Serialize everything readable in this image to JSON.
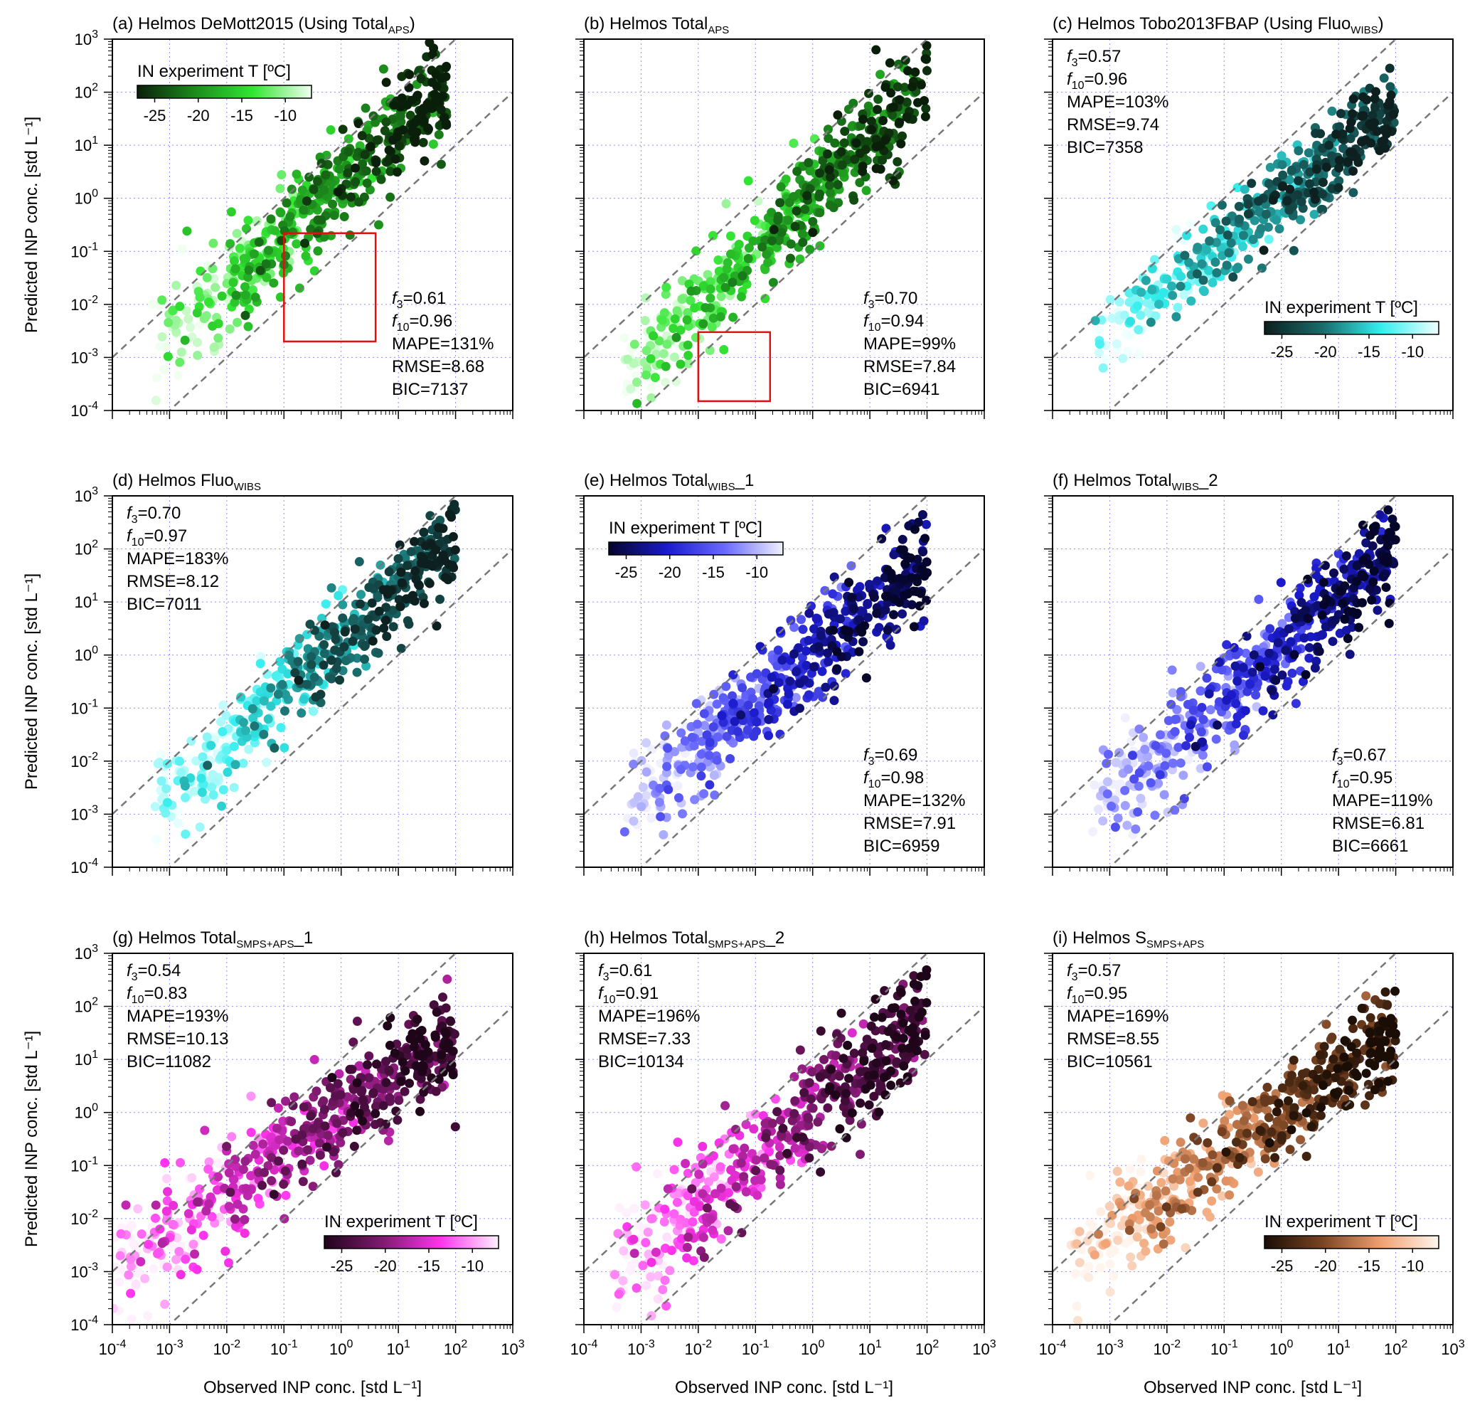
{
  "x_axis_label": "Observed INP conc. [std L⁻¹]",
  "y_axis_label": "Predicted INP conc. [std L⁻¹]",
  "colorbar_title": "IN experiment T [ºC]",
  "colorbar_ticks": [
    "-25",
    "-20",
    "-15",
    "-10"
  ],
  "axis_tick_labels": [
    "10⁻⁴",
    "10⁻³",
    "10⁻²",
    "10⁻¹",
    "10⁰",
    "10¹",
    "10²",
    "10³"
  ],
  "chart_data": [
    {
      "id": "a",
      "type": "scatter",
      "title": "(a) Helmos DeMott2015 (Using Total",
      "title_sub": "APS",
      "title_tail": ")",
      "xlim": [
        0.0001,
        1000
      ],
      "ylim": [
        0.0001,
        1000
      ],
      "xscale": "log",
      "yscale": "log",
      "colormap": [
        "#0a1f0a",
        "#1c8c1c",
        "#33e633",
        "#f0fff0"
      ],
      "colorbar": {
        "position": "top-left"
      },
      "stats": [
        "f3=0.61",
        "f10=0.96",
        "MAPE=131%",
        "RMSE=8.68",
        "BIC=7137"
      ],
      "stats_position": "bottom-right",
      "highlight_box": {
        "x": [
          0.1,
          4
        ],
        "y": [
          0.002,
          0.22
        ]
      },
      "cloud": {
        "x_range": [
          0.0005,
          70
        ],
        "slope": 1.0,
        "intercept": 0.3,
        "spread": 0.5,
        "n": 550,
        "seed": 11,
        "t_range": [
          -27,
          -7
        ]
      }
    },
    {
      "id": "b",
      "type": "scatter",
      "title": "(b) Helmos Total",
      "title_sub": "APS",
      "title_tail": "",
      "xlim": [
        0.0001,
        1000
      ],
      "ylim": [
        0.0001,
        1000
      ],
      "xscale": "log",
      "yscale": "log",
      "colormap": [
        "#0a1f0a",
        "#1c8c1c",
        "#33e633",
        "#f0fff0"
      ],
      "stats": [
        "f3=0.70",
        "f10=0.94",
        "MAPE=99%",
        "RMSE=7.84",
        "BIC=6941"
      ],
      "stats_position": "bottom-right",
      "highlight_box": {
        "x": [
          0.01,
          0.18
        ],
        "y": [
          0.00015,
          0.003
        ]
      },
      "cloud": {
        "x_range": [
          0.0005,
          100
        ],
        "slope": 1.05,
        "intercept": 0.1,
        "spread": 0.45,
        "n": 550,
        "seed": 23,
        "t_range": [
          -27,
          -7
        ]
      }
    },
    {
      "id": "c",
      "type": "scatter",
      "title": "(c) Helmos Tobo2013FBAP  (Using Fluo",
      "title_sub": "WIBS",
      "title_tail": ")",
      "xlim": [
        0.0001,
        1000
      ],
      "ylim": [
        0.0001,
        1000
      ],
      "xscale": "log",
      "yscale": "log",
      "colormap": [
        "#0d1f1f",
        "#1a6b6b",
        "#33eeee",
        "#f0ffff"
      ],
      "colorbar": {
        "position": "bottom-right"
      },
      "stats": [
        "f3=0.57",
        "f10=0.96",
        "MAPE=103%",
        "RMSE=9.74",
        "BIC=7358"
      ],
      "stats_position": "top-left",
      "cloud": {
        "x_range": [
          0.0005,
          100
        ],
        "slope": 0.85,
        "intercept": 0.0,
        "spread": 0.4,
        "n": 500,
        "seed": 37,
        "t_range": [
          -27,
          -7
        ]
      }
    },
    {
      "id": "d",
      "type": "scatter",
      "title": "(d) Helmos Fluo",
      "title_sub": "WIBS",
      "title_tail": "",
      "xlim": [
        0.0001,
        1000
      ],
      "ylim": [
        0.0001,
        1000
      ],
      "xscale": "log",
      "yscale": "log",
      "colormap": [
        "#0d1f1f",
        "#1a6b6b",
        "#33eeee",
        "#f0ffff"
      ],
      "stats": [
        "f3=0.70",
        "f10=0.97",
        "MAPE=183%",
        "RMSE=8.12",
        "BIC=7011"
      ],
      "stats_position": "top-left",
      "cloud": {
        "x_range": [
          0.0005,
          100
        ],
        "slope": 0.95,
        "intercept": 0.25,
        "spread": 0.45,
        "n": 520,
        "seed": 41,
        "t_range": [
          -27,
          -7
        ]
      }
    },
    {
      "id": "e",
      "type": "scatter",
      "title": "(e) Helmos Total",
      "title_sub": "WIBS",
      "title_tail": "_1",
      "xlim": [
        0.0001,
        1000
      ],
      "ylim": [
        0.0001,
        1000
      ],
      "xscale": "log",
      "yscale": "log",
      "colormap": [
        "#05052a",
        "#1a1acc",
        "#6a6aff",
        "#f0f0ff"
      ],
      "colorbar": {
        "position": "top-left"
      },
      "stats": [
        "f3=0.69",
        "f10=0.98",
        "MAPE=132%",
        "RMSE=7.91",
        "BIC=6959"
      ],
      "stats_position": "bottom-right",
      "cloud": {
        "x_range": [
          0.0005,
          100
        ],
        "slope": 0.9,
        "intercept": 0.0,
        "spread": 0.45,
        "n": 560,
        "seed": 53,
        "t_range": [
          -27,
          -7
        ]
      }
    },
    {
      "id": "f",
      "type": "scatter",
      "title": "(f) Helmos Total",
      "title_sub": "WIBS",
      "title_tail": "_2",
      "xlim": [
        0.0001,
        1000
      ],
      "ylim": [
        0.0001,
        1000
      ],
      "xscale": "log",
      "yscale": "log",
      "colormap": [
        "#05052a",
        "#1a1acc",
        "#6a6aff",
        "#f0f0ff"
      ],
      "stats": [
        "f3=0.67",
        "f10=0.95",
        "MAPE=119%",
        "RMSE=6.81",
        "BIC=6661"
      ],
      "stats_position": "bottom-right",
      "cloud": {
        "x_range": [
          0.0005,
          100
        ],
        "slope": 0.95,
        "intercept": 0.1,
        "spread": 0.5,
        "n": 560,
        "seed": 67,
        "t_range": [
          -27,
          -7
        ]
      }
    },
    {
      "id": "g",
      "type": "scatter",
      "title": "(g) Helmos Total",
      "title_sub": "SMPS+APS",
      "title_tail": "_1",
      "xlim": [
        0.0001,
        1000
      ],
      "ylim": [
        0.0001,
        1000
      ],
      "xscale": "log",
      "yscale": "log",
      "colormap": [
        "#1f0519",
        "#801a70",
        "#ff33ee",
        "#fff0fd"
      ],
      "colorbar": {
        "position": "bottom-right"
      },
      "stats": [
        "f3=0.54",
        "f10=0.83",
        "MAPE=193%",
        "RMSE=10.13",
        "BIC=11082"
      ],
      "stats_position": "top-left",
      "cloud": {
        "x_range": [
          0.0001,
          100
        ],
        "slope": 0.75,
        "intercept": 0.0,
        "spread": 0.5,
        "n": 560,
        "seed": 71,
        "t_range": [
          -27,
          -7
        ]
      }
    },
    {
      "id": "h",
      "type": "scatter",
      "title": "(h) Helmos Total",
      "title_sub": "SMPS+APS",
      "title_tail": "_2",
      "xlim": [
        0.0001,
        1000
      ],
      "ylim": [
        0.0001,
        1000
      ],
      "xscale": "log",
      "yscale": "log",
      "colormap": [
        "#1f0519",
        "#801a70",
        "#ff33ee",
        "#fff0fd"
      ],
      "stats": [
        "f3=0.61",
        "f10=0.91",
        "MAPE=196%",
        "RMSE=7.33",
        "BIC=10134"
      ],
      "stats_position": "top-left",
      "cloud": {
        "x_range": [
          0.0003,
          100
        ],
        "slope": 0.9,
        "intercept": 0.05,
        "spread": 0.5,
        "n": 560,
        "seed": 83,
        "t_range": [
          -27,
          -7
        ]
      }
    },
    {
      "id": "i",
      "type": "scatter",
      "title": "(i) Helmos S",
      "title_sub": "SMPS+APS",
      "title_tail": "",
      "xlim": [
        0.0001,
        1000
      ],
      "ylim": [
        0.0001,
        1000
      ],
      "xscale": "log",
      "yscale": "log",
      "colormap": [
        "#1a0d05",
        "#7a4422",
        "#f0a070",
        "#fff5ee"
      ],
      "colorbar": {
        "position": "bottom-right"
      },
      "stats": [
        "f3=0.57",
        "f10=0.95",
        "MAPE=169%",
        "RMSE=8.55",
        "BIC=10561"
      ],
      "stats_position": "top-left",
      "cloud": {
        "x_range": [
          0.0002,
          100
        ],
        "slope": 0.75,
        "intercept": 0.0,
        "spread": 0.45,
        "n": 560,
        "seed": 97,
        "t_range": [
          -27,
          -7
        ]
      }
    }
  ]
}
